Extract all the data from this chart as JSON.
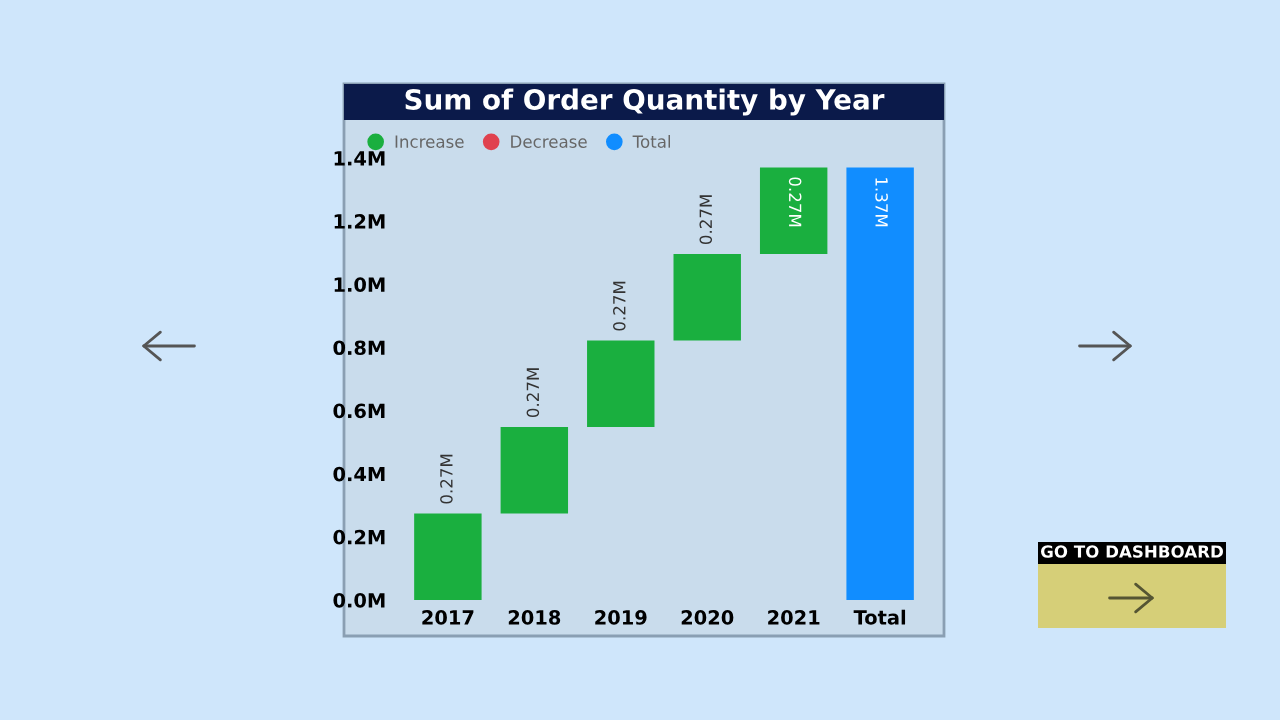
{
  "chart_data": {
    "type": "bar",
    "title": "Sum of Order Quantity by Year",
    "categories": [
      "2017",
      "2018",
      "2019",
      "2020",
      "2021",
      "Total"
    ],
    "series": [
      {
        "name": "Increase",
        "color": "#1aaf3f",
        "values": [
          0.274,
          0.274,
          0.274,
          0.274,
          0.274,
          null
        ],
        "base": [
          0,
          0.274,
          0.548,
          0.822,
          1.096,
          null
        ],
        "value_labels": [
          "0.27M",
          "0.27M",
          "0.27M",
          "0.27M",
          "0.27M",
          null
        ]
      },
      {
        "name": "Decrease",
        "color": "#e0424f",
        "values": [
          null,
          null,
          null,
          null,
          null,
          null
        ],
        "base": [
          null,
          null,
          null,
          null,
          null,
          null
        ],
        "value_labels": [
          null,
          null,
          null,
          null,
          null,
          null
        ]
      },
      {
        "name": "Total",
        "color": "#118dff",
        "values": [
          null,
          null,
          null,
          null,
          null,
          1.37
        ],
        "base": [
          null,
          null,
          null,
          null,
          null,
          0
        ],
        "value_labels": [
          null,
          null,
          null,
          null,
          null,
          "1.37M"
        ]
      }
    ],
    "ylim": [
      0,
      1.4
    ],
    "yticks": [
      {
        "value": 0,
        "label": "0.0M"
      },
      {
        "value": 0.2,
        "label": "0.2M"
      },
      {
        "value": 0.4,
        "label": "0.4M"
      },
      {
        "value": 0.6,
        "label": "0.6M"
      },
      {
        "value": 0.8,
        "label": "0.8M"
      },
      {
        "value": 1.0,
        "label": "1.0M"
      },
      {
        "value": 1.2,
        "label": "1.2M"
      },
      {
        "value": 1.4,
        "label": "1.4M"
      }
    ],
    "grid": false,
    "legend": "top left",
    "annotations": [
      "GO TO DASHBOARD"
    ]
  }
}
